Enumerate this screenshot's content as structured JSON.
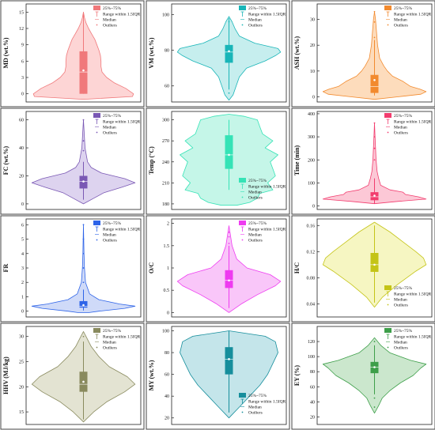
{
  "chart_data": [
    {
      "type": "violin",
      "ylabel": "MD (wt.%)",
      "ylim": [
        -1.5,
        16.5
      ],
      "yticks": [
        0,
        3,
        6,
        9,
        12,
        15
      ],
      "color": "#f0797b",
      "fill": "#fdd5d5",
      "profile": [
        [
          -1,
          0.02
        ],
        [
          -0.5,
          0.95
        ],
        [
          0,
          0.97
        ],
        [
          1,
          0.82
        ],
        [
          2,
          0.6
        ],
        [
          3,
          0.45
        ],
        [
          4,
          0.36
        ],
        [
          5,
          0.34
        ],
        [
          6,
          0.34
        ],
        [
          7,
          0.33
        ],
        [
          8,
          0.3
        ],
        [
          9,
          0.26
        ],
        [
          10,
          0.22
        ],
        [
          11,
          0.16
        ],
        [
          12,
          0.1
        ],
        [
          13,
          0.05
        ],
        [
          14,
          0.02
        ],
        [
          15,
          0
        ]
      ],
      "box": {
        "q1": 0,
        "q3": 7.8,
        "whisker_low": 0,
        "whisker_high": 15,
        "median": 4,
        "mean": 4.3,
        "outliers": []
      },
      "legend": {
        "pos": "top-right",
        "items": [
          "25%~75%",
          "Range within 1.5IQR",
          "Median",
          "Outliers"
        ]
      }
    },
    {
      "type": "violin",
      "ylabel": "VM (wt.%)",
      "ylim": [
        51,
        106
      ],
      "yticks": [
        60,
        80,
        100
      ],
      "color": "#19b5b8",
      "fill": "#c6eeee",
      "profile": [
        [
          52,
          0
        ],
        [
          55,
          0.08
        ],
        [
          60,
          0.14
        ],
        [
          65,
          0.2
        ],
        [
          70,
          0.34
        ],
        [
          74,
          0.7
        ],
        [
          77,
          0.9
        ],
        [
          79,
          1
        ],
        [
          81,
          0.95
        ],
        [
          84,
          0.5
        ],
        [
          88,
          0.2
        ],
        [
          92,
          0.12
        ],
        [
          96,
          0.06
        ],
        [
          99,
          0
        ]
      ],
      "box": {
        "q1": 73,
        "q3": 83,
        "whisker_low": 58,
        "whisker_high": 98,
        "median": 79,
        "mean": 79.5,
        "outliers": [
          56,
          96
        ]
      },
      "legend": {
        "pos": "top-right",
        "items": [
          "25%~75%",
          "Range within 1.5IQR",
          "Median",
          "Outliers"
        ]
      }
    },
    {
      "type": "violin",
      "ylabel": "ASH (wt.%)",
      "ylim": [
        -2,
        36
      ],
      "yticks": [
        0,
        10,
        20,
        30
      ],
      "color": "#f28a2e",
      "fill": "#fddcbc",
      "profile": [
        [
          -1,
          0
        ],
        [
          0,
          0.45
        ],
        [
          1,
          0.9
        ],
        [
          2,
          1
        ],
        [
          3,
          0.88
        ],
        [
          4,
          0.7
        ],
        [
          6,
          0.55
        ],
        [
          8,
          0.35
        ],
        [
          10,
          0.25
        ],
        [
          12,
          0.18
        ],
        [
          15,
          0.1
        ],
        [
          20,
          0.06
        ],
        [
          25,
          0.04
        ],
        [
          30,
          0.02
        ],
        [
          33,
          0
        ]
      ],
      "box": {
        "q1": 1.5,
        "q3": 8.5,
        "whisker_low": 0.5,
        "whisker_high": 22,
        "median": 4,
        "mean": 6.5,
        "outliers": [
          23,
          29,
          33
        ]
      },
      "legend": {
        "pos": "top-right",
        "items": [
          "25%~75%",
          "Range within 1.5IQR",
          "Median",
          "Outliers"
        ]
      }
    },
    {
      "type": "violin",
      "ylabel": "FC (wt.%)",
      "ylim": [
        -4,
        66
      ],
      "yticks": [
        0,
        20,
        40,
        60
      ],
      "color": "#7a58b4",
      "fill": "#ddd3ef",
      "profile": [
        [
          0,
          0
        ],
        [
          4,
          0.2
        ],
        [
          8,
          0.4
        ],
        [
          12,
          0.75
        ],
        [
          15,
          1
        ],
        [
          18,
          0.8
        ],
        [
          22,
          0.35
        ],
        [
          26,
          0.15
        ],
        [
          30,
          0.08
        ],
        [
          40,
          0.03
        ],
        [
          50,
          0.015
        ],
        [
          60,
          0
        ]
      ],
      "box": {
        "q1": 11,
        "q3": 20,
        "whisker_low": 3,
        "whisker_high": 30,
        "median": 16,
        "mean": 16,
        "outliers": [
          38,
          45,
          60
        ]
      },
      "legend": {
        "pos": "top-right",
        "items": [
          "25%~75%",
          "Range within 1.5IQR",
          "Median",
          "Outliers"
        ]
      }
    },
    {
      "type": "violin",
      "ylabel": "Temp (°C)",
      "ylim": [
        172,
        312
      ],
      "yticks": [
        180,
        210,
        240,
        270,
        300
      ],
      "color": "#35e3b6",
      "fill": "#c5f6e8",
      "profile": [
        [
          178,
          0.15
        ],
        [
          182,
          0.4
        ],
        [
          188,
          0.55
        ],
        [
          195,
          0.6
        ],
        [
          200,
          0.85
        ],
        [
          210,
          0.75
        ],
        [
          220,
          0.9
        ],
        [
          230,
          0.85
        ],
        [
          240,
          0.8
        ],
        [
          250,
          0.95
        ],
        [
          260,
          0.7
        ],
        [
          270,
          0.85
        ],
        [
          280,
          0.65
        ],
        [
          290,
          0.6
        ],
        [
          300,
          0.55
        ],
        [
          305,
          0.3
        ],
        [
          308,
          0
        ]
      ],
      "box": {
        "q1": 230,
        "q3": 278,
        "whisker_low": 200,
        "whisker_high": 300,
        "median": 250,
        "mean": 250,
        "outliers": []
      },
      "legend": {
        "pos": "bottom-right",
        "items": [
          "25%~75%",
          "Range within 1.5IQR",
          "Median",
          "Outliers"
        ]
      }
    },
    {
      "type": "violin",
      "ylabel": "Time (min)",
      "ylim": [
        -15,
        410
      ],
      "yticks": [
        0,
        100,
        200,
        300,
        400
      ],
      "color": "#f23c6e",
      "fill": "#fcc8d6",
      "profile": [
        [
          10,
          0
        ],
        [
          20,
          0.45
        ],
        [
          30,
          1
        ],
        [
          40,
          0.85
        ],
        [
          50,
          0.6
        ],
        [
          60,
          0.55
        ],
        [
          70,
          0.3
        ],
        [
          90,
          0.12
        ],
        [
          120,
          0.08
        ],
        [
          150,
          0.05
        ],
        [
          200,
          0.03
        ],
        [
          300,
          0.01
        ],
        [
          360,
          0
        ]
      ],
      "box": {
        "q1": 25,
        "q3": 60,
        "whisker_low": 10,
        "whisker_high": 120,
        "median": 40,
        "mean": 45,
        "outliers": [
          200,
          250,
          300,
          360
        ]
      },
      "legend": {
        "pos": "top-right",
        "items": [
          "25%~75%",
          "Range within 1.5IQR",
          "Median",
          "Outliers"
        ]
      }
    },
    {
      "type": "violin",
      "ylabel": "FR",
      "ylim": [
        -0.4,
        6.4
      ],
      "yticks": [
        0,
        1,
        2,
        3,
        4,
        5,
        6
      ],
      "color": "#2e64e8",
      "fill": "#cfdaf8",
      "profile": [
        [
          -0.1,
          0.1
        ],
        [
          0,
          0.3
        ],
        [
          0.2,
          0.8
        ],
        [
          0.35,
          1
        ],
        [
          0.5,
          0.7
        ],
        [
          0.8,
          0.3
        ],
        [
          1.2,
          0.12
        ],
        [
          2,
          0.04
        ],
        [
          3,
          0.02
        ],
        [
          4,
          0.01
        ],
        [
          6,
          0
        ]
      ],
      "box": {
        "q1": 0.25,
        "q3": 0.7,
        "whisker_low": 0.05,
        "whisker_high": 1.5,
        "median": 0.35,
        "mean": 0.42,
        "outliers": [
          2.0,
          3.0,
          4.0,
          5.0,
          6.0
        ]
      },
      "legend": {
        "pos": "top-right",
        "items": [
          "25%~75%",
          "Range within 1.5IQR",
          "Median",
          "Outliers"
        ]
      }
    },
    {
      "type": "violin",
      "ylabel": "O/C",
      "ylim": [
        -0.1,
        2.1
      ],
      "yticks": [
        0.0,
        0.5,
        1.0,
        1.5,
        2.0
      ],
      "color": "#ee3bf0",
      "fill": "#f9c6f9",
      "profile": [
        [
          0,
          0
        ],
        [
          0.2,
          0.25
        ],
        [
          0.4,
          0.55
        ],
        [
          0.6,
          0.9
        ],
        [
          0.7,
          1
        ],
        [
          0.85,
          0.8
        ],
        [
          1,
          0.35
        ],
        [
          1.2,
          0.15
        ],
        [
          1.5,
          0.06
        ],
        [
          1.8,
          0.02
        ],
        [
          1.95,
          0
        ]
      ],
      "box": {
        "q1": 0.55,
        "q3": 0.95,
        "whisker_low": 0.1,
        "whisker_high": 1.5,
        "median": 0.72,
        "mean": 0.72,
        "outliers": [
          1.55,
          1.7,
          1.8
        ]
      },
      "legend": {
        "pos": "top-right",
        "items": [
          "25%~75%",
          "Range within 1.5IQR",
          "Median",
          "Outliers"
        ]
      }
    },
    {
      "type": "violin",
      "ylabel": "H/C",
      "ylim": [
        0.02,
        0.17
      ],
      "yticks": [
        0.04,
        0.08,
        0.12,
        0.16
      ],
      "color": "#c4c417",
      "fill": "#f6f6c2",
      "profile": [
        [
          0.035,
          0
        ],
        [
          0.05,
          0.15
        ],
        [
          0.07,
          0.45
        ],
        [
          0.09,
          0.8
        ],
        [
          0.1,
          1
        ],
        [
          0.11,
          0.95
        ],
        [
          0.12,
          0.8
        ],
        [
          0.135,
          0.55
        ],
        [
          0.15,
          0.3
        ],
        [
          0.165,
          0
        ]
      ],
      "box": {
        "q1": 0.089,
        "q3": 0.118,
        "whisker_low": 0.042,
        "whisker_high": 0.16,
        "median": 0.1,
        "mean": 0.1,
        "outliers": []
      },
      "legend": {
        "pos": "bottom-right",
        "items": [
          "25%~75%",
          "Range within 1.5IQR",
          "Median",
          "Outliers"
        ]
      }
    },
    {
      "type": "violin",
      "ylabel": "HHV (MJ/kg)",
      "ylim": [
        12.5,
        32
      ],
      "yticks": [
        15,
        20,
        25,
        30
      ],
      "color": "#898a5e",
      "fill": "#e3e3d2",
      "profile": [
        [
          13,
          0
        ],
        [
          15,
          0.2
        ],
        [
          17,
          0.45
        ],
        [
          19,
          0.8
        ],
        [
          20.5,
          1
        ],
        [
          22,
          0.85
        ],
        [
          24,
          0.5
        ],
        [
          26,
          0.3
        ],
        [
          28,
          0.15
        ],
        [
          30,
          0.05
        ],
        [
          31,
          0
        ]
      ],
      "box": {
        "q1": 19,
        "q3": 23,
        "whisker_low": 13.5,
        "whisker_high": 29,
        "median": 20.5,
        "mean": 21,
        "outliers": [
          30
        ]
      },
      "legend": {
        "pos": "top-right",
        "items": [
          "25%~75%",
          "Range within 1.5IQR",
          "Median",
          "Outliers"
        ]
      }
    },
    {
      "type": "violin",
      "ylabel": "MY (wt.%)",
      "ylim": [
        14,
        104
      ],
      "yticks": [
        20,
        40,
        60,
        80,
        100
      ],
      "color": "#168e9c",
      "fill": "#c4e5ea",
      "profile": [
        [
          20,
          0
        ],
        [
          30,
          0.2
        ],
        [
          40,
          0.4
        ],
        [
          50,
          0.6
        ],
        [
          60,
          0.75
        ],
        [
          70,
          0.85
        ],
        [
          80,
          0.95
        ],
        [
          90,
          0.9
        ],
        [
          95,
          0.7
        ],
        [
          100,
          0
        ]
      ],
      "box": {
        "q1": 60,
        "q3": 85,
        "whisker_low": 25,
        "whisker_high": 100,
        "median": 74,
        "mean": 74,
        "outliers": []
      },
      "legend": {
        "pos": "bottom-right",
        "items": [
          "25%~75%",
          "Range within 1.5IQR",
          "Median",
          "Outliers"
        ]
      }
    },
    {
      "type": "violin",
      "ylabel": "EY (%)",
      "ylim": [
        10,
        140
      ],
      "yticks": [
        20,
        40,
        60,
        80,
        100,
        120
      ],
      "color": "#3e9f4a",
      "fill": "#cbe7cd",
      "profile": [
        [
          25,
          0
        ],
        [
          35,
          0.08
        ],
        [
          45,
          0.15
        ],
        [
          55,
          0.3
        ],
        [
          65,
          0.5
        ],
        [
          75,
          0.75
        ],
        [
          85,
          0.9
        ],
        [
          90,
          1
        ],
        [
          95,
          0.7
        ],
        [
          105,
          0.3
        ],
        [
          115,
          0.12
        ],
        [
          125,
          0
        ]
      ],
      "box": {
        "q1": 78,
        "q3": 93,
        "whisker_low": 50,
        "whisker_high": 115,
        "median": 86,
        "mean": 86,
        "outliers": [
          45,
          33,
          120
        ]
      },
      "legend": {
        "pos": "top-right",
        "items": [
          "25%~75%",
          "Range within 1.5IQR",
          "Median",
          "Outliers"
        ]
      }
    }
  ]
}
